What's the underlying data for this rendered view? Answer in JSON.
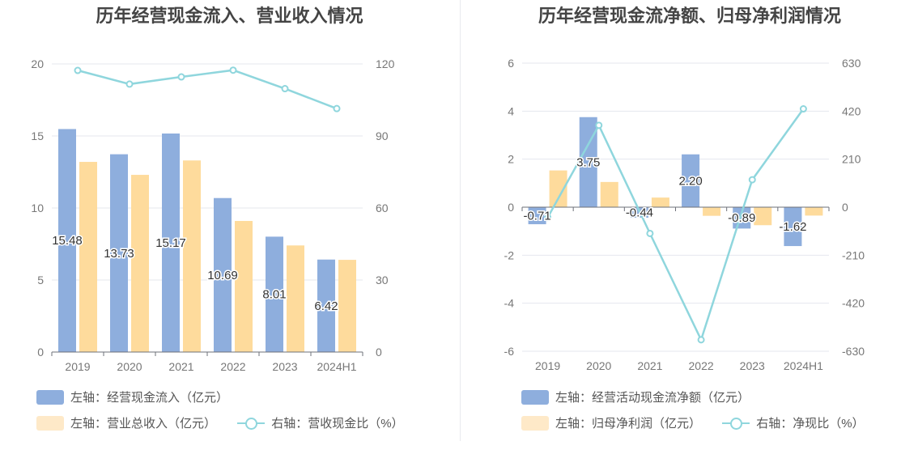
{
  "chart_data": [
    {
      "type": "bar",
      "title": "历年经营现金流入、营业收入情况",
      "categories": [
        "2019",
        "2020",
        "2021",
        "2022",
        "2023",
        "2024H1"
      ],
      "left_axis": {
        "min": 0,
        "max": 20,
        "ticks": [
          "0",
          "5",
          "10",
          "15",
          "20"
        ]
      },
      "right_axis": {
        "min": 0,
        "max": 120,
        "ticks": [
          "0",
          "30",
          "60",
          "90",
          "120"
        ]
      },
      "series": [
        {
          "name": "左轴：经营现金流入（亿元）",
          "kind": "bar",
          "axis": "left",
          "color": "#8eaedd",
          "values": [
            15.48,
            13.73,
            15.17,
            10.69,
            8.01,
            6.42
          ],
          "labels": [
            "15.48",
            "13.73",
            "15.17",
            "10.69",
            "8.01",
            "6.42"
          ]
        },
        {
          "name": "左轴：营业总收入（亿元）",
          "kind": "bar",
          "axis": "left",
          "color": "#fedb9c",
          "values": [
            13.2,
            12.3,
            13.3,
            9.1,
            7.4,
            6.4
          ]
        },
        {
          "name": "右轴：营收现金比（%）",
          "kind": "line",
          "axis": "right",
          "color": "#8fd6dd",
          "values": [
            117.3,
            111.6,
            114.6,
            117.4,
            109.7,
            101.4
          ]
        }
      ]
    },
    {
      "type": "bar",
      "title": "历年经营现金流净额、归母净利润情况",
      "categories": [
        "2019",
        "2020",
        "2021",
        "2022",
        "2023",
        "2024H1"
      ],
      "left_axis": {
        "min": -6,
        "max": 6,
        "ticks": [
          "-6",
          "-4",
          "-2",
          "0",
          "2",
          "4",
          "6"
        ]
      },
      "right_axis": {
        "min": -630,
        "max": 630,
        "ticks": [
          "-630",
          "-420",
          "-210",
          "0",
          "210",
          "420",
          "630"
        ]
      },
      "series": [
        {
          "name": "左轴：经营活动现金流净额（亿元）",
          "kind": "bar",
          "axis": "left",
          "color": "#8eaedd",
          "values": [
            -0.71,
            3.75,
            -0.44,
            2.2,
            -0.89,
            -1.62
          ],
          "labels": [
            "-0.71",
            "3.75",
            "-0.44",
            "2.20",
            "-0.89",
            "-1.62"
          ]
        },
        {
          "name": "左轴：归母净利润（亿元）",
          "kind": "bar",
          "axis": "left",
          "color": "#fedb9c",
          "values": [
            1.53,
            1.05,
            0.4,
            -0.36,
            -0.75,
            -0.35
          ]
        },
        {
          "name": "右轴：净现比（%）",
          "kind": "line",
          "axis": "right",
          "color": "#8fd6dd",
          "values": [
            -45,
            358,
            -115,
            -580,
            120,
            430
          ]
        }
      ]
    }
  ]
}
